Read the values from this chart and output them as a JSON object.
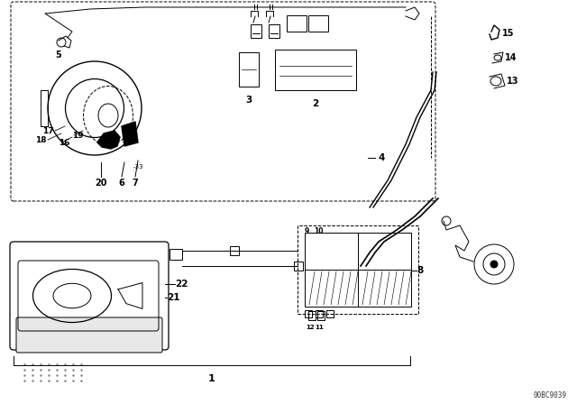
{
  "bg_color": "#ffffff",
  "line_color": "#000000",
  "fig_width": 6.4,
  "fig_height": 4.48,
  "dpi": 100,
  "watermark": "00BC9039",
  "lw": 0.7
}
